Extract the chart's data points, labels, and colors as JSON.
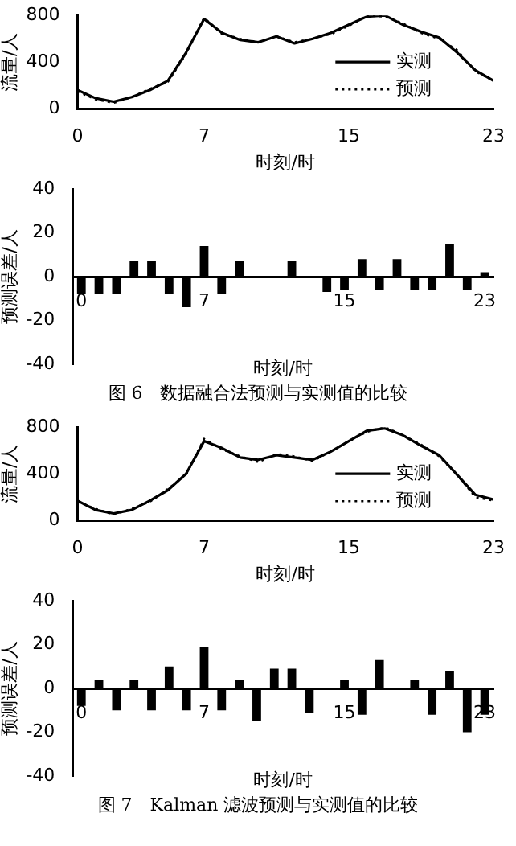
{
  "chart_data": [
    {
      "type": "line",
      "xlabel": "时刻/时",
      "ylabel": "流量/人",
      "x": [
        0,
        1,
        2,
        3,
        4,
        5,
        6,
        7,
        8,
        9,
        10,
        11,
        12,
        13,
        14,
        15,
        16,
        17,
        18,
        19,
        20,
        21,
        22,
        23
      ],
      "xlim": [
        0,
        23
      ],
      "xticks": [
        0,
        7,
        15,
        23
      ],
      "ylim": [
        0,
        800
      ],
      "yticks": [
        0,
        400,
        800
      ],
      "grid": false,
      "legend": "right",
      "marker": "none",
      "series": [
        {
          "name": "实测",
          "color": "#000000",
          "line_style": "solid",
          "values": [
            160,
            90,
            60,
            100,
            160,
            240,
            480,
            770,
            650,
            590,
            570,
            620,
            560,
            600,
            650,
            720,
            790,
            800,
            720,
            660,
            610,
            480,
            330,
            240
          ]
        },
        {
          "name": "预测",
          "color": "#000000",
          "line_style": "dotted",
          "values": [
            150,
            80,
            50,
            100,
            170,
            230,
            470,
            780,
            640,
            600,
            570,
            620,
            570,
            600,
            640,
            710,
            800,
            790,
            730,
            650,
            600,
            500,
            320,
            240
          ]
        }
      ]
    },
    {
      "type": "bar",
      "xlabel": "时刻/时",
      "ylabel": "预测误差/人",
      "categories": [
        "0",
        null,
        null,
        null,
        null,
        null,
        null,
        "7",
        null,
        null,
        null,
        null,
        null,
        null,
        null,
        "15",
        null,
        null,
        null,
        null,
        null,
        null,
        null,
        "23"
      ],
      "ylim": [
        -40,
        40
      ],
      "yticks": [
        -40,
        -20,
        0,
        20,
        40
      ],
      "grid": false,
      "color": "#000000",
      "values": [
        -8,
        -8,
        -8,
        7,
        7,
        -8,
        -14,
        14,
        -8,
        7,
        0,
        0,
        7,
        0,
        -7,
        -6,
        8,
        -6,
        8,
        -6,
        -6,
        15,
        -6,
        2
      ],
      "annotations": [
        "图 6　数据融合法预测与实测值的比较"
      ]
    },
    {
      "type": "line",
      "xlabel": "时刻/时",
      "ylabel": "流量/人",
      "x": [
        0,
        1,
        2,
        3,
        4,
        5,
        6,
        7,
        8,
        9,
        10,
        11,
        12,
        13,
        14,
        15,
        16,
        17,
        18,
        19,
        20,
        21,
        22,
        23
      ],
      "xlim": [
        0,
        23
      ],
      "xticks": [
        0,
        7,
        15,
        23
      ],
      "ylim": [
        0,
        800
      ],
      "yticks": [
        0,
        400,
        800
      ],
      "grid": false,
      "legend": "right",
      "marker": "none",
      "series": [
        {
          "name": "实测",
          "color": "#000000",
          "line_style": "solid",
          "values": [
            170,
            90,
            60,
            90,
            170,
            260,
            400,
            680,
            620,
            540,
            520,
            560,
            540,
            520,
            590,
            680,
            770,
            790,
            730,
            640,
            560,
            390,
            220,
            180
          ]
        },
        {
          "name": "预测",
          "color": "#000000",
          "line_style": "dotted",
          "values": [
            160,
            100,
            50,
            100,
            160,
            270,
            390,
            700,
            610,
            550,
            500,
            570,
            550,
            510,
            590,
            680,
            760,
            800,
            730,
            650,
            550,
            390,
            200,
            170
          ]
        }
      ]
    },
    {
      "type": "bar",
      "xlabel": "时刻/时",
      "ylabel": "预测误差/人",
      "categories": [
        "0",
        null,
        null,
        null,
        null,
        null,
        null,
        "7",
        null,
        null,
        null,
        null,
        null,
        null,
        null,
        "15",
        null,
        null,
        null,
        null,
        null,
        null,
        null,
        "23"
      ],
      "ylim": [
        -40,
        40
      ],
      "yticks": [
        -40,
        -20,
        0,
        20,
        40
      ],
      "grid": false,
      "color": "#000000",
      "values": [
        -8,
        4,
        -10,
        4,
        -10,
        10,
        -10,
        19,
        -10,
        4,
        -15,
        9,
        9,
        -11,
        0,
        4,
        -12,
        13,
        0,
        4,
        -12,
        8,
        -20,
        -12
      ],
      "annotations": [
        "图 7　Kalman 滤波预测与实测值的比较"
      ]
    }
  ]
}
